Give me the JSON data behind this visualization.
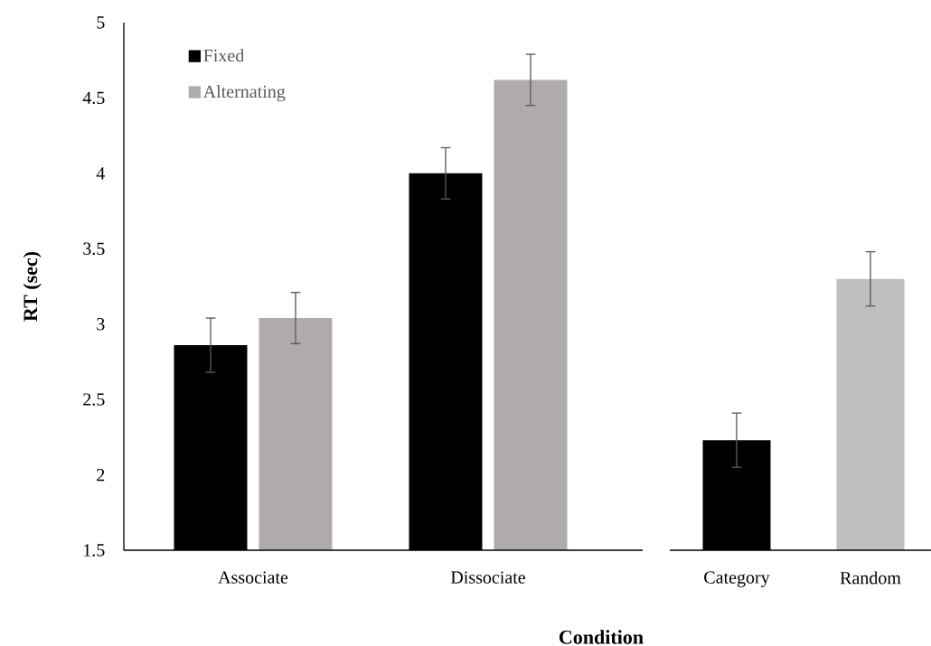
{
  "chart_data": {
    "type": "bar",
    "xlabel": "Condition",
    "ylabel": "RT (sec)",
    "categories": [
      "Associate",
      "Dissociate",
      "Category",
      "Random"
    ],
    "series": [
      {
        "name": "Fixed",
        "color": "#000000",
        "values": [
          2.86,
          4.0,
          null,
          null
        ],
        "errors": [
          0.18,
          0.17,
          null,
          null
        ]
      },
      {
        "name": "Alternating",
        "color": "#afabab",
        "values": [
          3.04,
          4.62,
          null,
          null
        ],
        "errors": [
          0.17,
          0.17,
          null,
          null
        ]
      },
      {
        "colors": [
          "#000000",
          "#000000",
          "#000000",
          "#bfbfbf"
        ],
        "values": [
          null,
          null,
          2.23,
          3.3
        ],
        "errors": [
          null,
          null,
          0.18,
          0.18
        ]
      }
    ],
    "ylim": [
      1.5,
      5
    ],
    "yticks": [
      1.5,
      2,
      2.5,
      3,
      3.5,
      4,
      4.5,
      5
    ],
    "grid": false,
    "legend": "top left"
  }
}
